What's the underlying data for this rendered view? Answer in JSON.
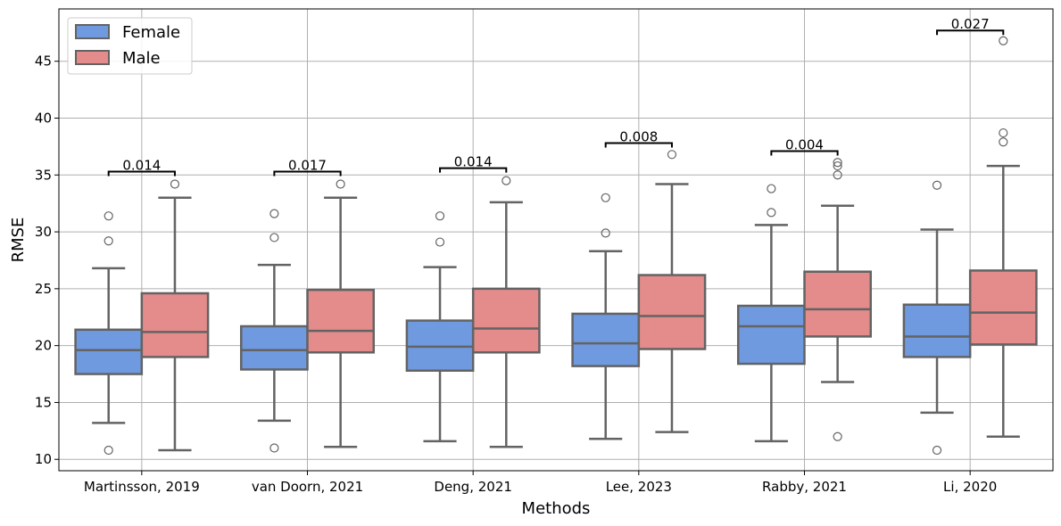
{
  "chart_data": {
    "type": "box",
    "xlabel": "Methods",
    "ylabel": "RMSE",
    "ylim": [
      9.0,
      49.6
    ],
    "yticks": [
      10,
      15,
      20,
      25,
      30,
      35,
      40,
      45
    ],
    "grid": true,
    "legend": {
      "position": "top-left",
      "entries": [
        "Female",
        "Male"
      ]
    },
    "colors": {
      "Female": "#6f9ae0",
      "Male": "#e48b8b",
      "box_edge": "#636363"
    },
    "categories": [
      "Martinsson, 2019",
      "van Doorn, 2021",
      "Deng, 2021",
      "Lee, 2023",
      "Rabby, 2021",
      "Li, 2020"
    ],
    "series": [
      {
        "name": "Female",
        "boxes": [
          {
            "whisker_low": 13.2,
            "q1": 17.5,
            "median": 19.6,
            "q3": 21.4,
            "whisker_high": 26.8,
            "outliers": [
              31.4,
              29.2,
              10.8
            ]
          },
          {
            "whisker_low": 13.4,
            "q1": 17.9,
            "median": 19.6,
            "q3": 21.7,
            "whisker_high": 27.1,
            "outliers": [
              31.6,
              29.5,
              11.0
            ]
          },
          {
            "whisker_low": 11.6,
            "q1": 17.8,
            "median": 19.9,
            "q3": 22.2,
            "whisker_high": 26.9,
            "outliers": [
              31.4,
              29.1
            ]
          },
          {
            "whisker_low": 11.8,
            "q1": 18.2,
            "median": 20.2,
            "q3": 22.8,
            "whisker_high": 28.3,
            "outliers": [
              33.0,
              29.9
            ]
          },
          {
            "whisker_low": 11.6,
            "q1": 18.4,
            "median": 21.7,
            "q3": 23.5,
            "whisker_high": 30.6,
            "outliers": [
              33.8,
              31.7
            ]
          },
          {
            "whisker_low": 14.1,
            "q1": 19.0,
            "median": 20.8,
            "q3": 23.6,
            "whisker_high": 30.2,
            "outliers": [
              34.1,
              10.8
            ]
          }
        ]
      },
      {
        "name": "Male",
        "boxes": [
          {
            "whisker_low": 10.8,
            "q1": 19.0,
            "median": 21.2,
            "q3": 24.6,
            "whisker_high": 33.0,
            "outliers": [
              34.2
            ]
          },
          {
            "whisker_low": 11.1,
            "q1": 19.4,
            "median": 21.3,
            "q3": 24.9,
            "whisker_high": 33.0,
            "outliers": [
              34.2
            ]
          },
          {
            "whisker_low": 11.1,
            "q1": 19.4,
            "median": 21.5,
            "q3": 25.0,
            "whisker_high": 32.6,
            "outliers": [
              34.5
            ]
          },
          {
            "whisker_low": 12.4,
            "q1": 19.7,
            "median": 22.6,
            "q3": 26.2,
            "whisker_high": 34.2,
            "outliers": [
              36.8
            ]
          },
          {
            "whisker_low": 16.8,
            "q1": 20.8,
            "median": 23.2,
            "q3": 26.5,
            "whisker_high": 32.3,
            "outliers": [
              36.1,
              35.8,
              35.0,
              12.0
            ]
          },
          {
            "whisker_low": 12.0,
            "q1": 20.1,
            "median": 22.9,
            "q3": 26.6,
            "whisker_high": 35.8,
            "outliers": [
              46.8,
              38.7,
              37.9
            ]
          }
        ]
      }
    ],
    "annotations": [
      {
        "category_index": 0,
        "y": 35.3,
        "label": "0.014"
      },
      {
        "category_index": 1,
        "y": 35.3,
        "label": "0.017"
      },
      {
        "category_index": 2,
        "y": 35.6,
        "label": "0.014"
      },
      {
        "category_index": 3,
        "y": 37.8,
        "label": "0.008"
      },
      {
        "category_index": 4,
        "y": 37.1,
        "label": "0.004"
      },
      {
        "category_index": 5,
        "y": 47.7,
        "label": "0.027"
      }
    ]
  }
}
